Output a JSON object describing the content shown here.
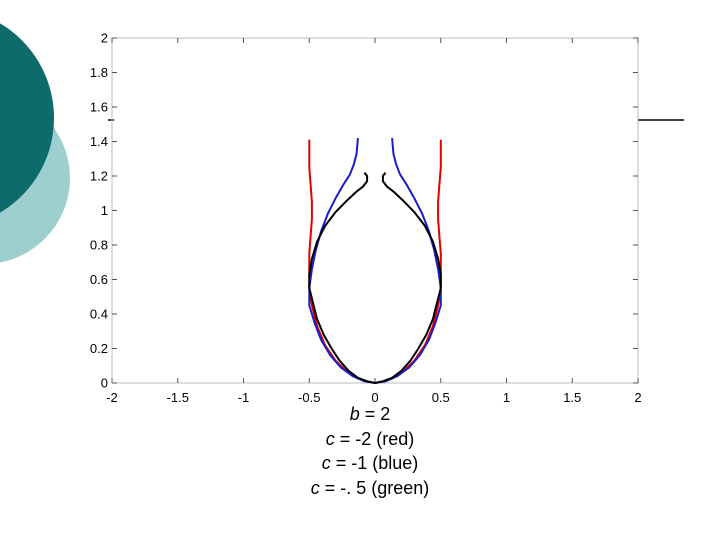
{
  "slide": {
    "caption": [
      {
        "var": "b",
        "text": " = 2"
      },
      {
        "var": "c",
        "text": " = -2 (red)"
      },
      {
        "var": "c",
        "text": " = -1 (blue)"
      },
      {
        "var": "c",
        "text": " = -. 5 (green)"
      }
    ],
    "colors": {
      "teal_dark": "#0e6b6b",
      "teal_light": "#9ecfcf",
      "title_rule": "#000000"
    }
  },
  "chart_data": {
    "type": "line",
    "xlim": [
      -2,
      2
    ],
    "ylim": [
      0,
      2
    ],
    "xticks": [
      -2,
      -1.5,
      -1,
      -0.5,
      0,
      0.5,
      1,
      1.5,
      2
    ],
    "yticks": [
      0,
      0.2,
      0.4,
      0.6,
      0.8,
      1,
      1.2,
      1.4,
      1.6,
      1.8,
      2
    ],
    "xtick_labels": [
      "-2",
      "-1.5",
      "-1",
      "-0.5",
      "0",
      "0.5",
      "1",
      "1.5",
      "2"
    ],
    "ytick_labels": [
      "0",
      "0.2",
      "0.4",
      "0.6",
      "0.8",
      "1",
      "1.2",
      "1.4",
      "1.6",
      "1.8",
      "2"
    ],
    "grid": false,
    "series": [
      {
        "color": "#e00000",
        "x": [
          0,
          0.06,
          0.14,
          0.22,
          0.3,
          0.38,
          0.44,
          0.48,
          0.5,
          0.5,
          0.5,
          0.49,
          0.48,
          0.48,
          0.49,
          0.5,
          0.5
        ],
        "y": [
          0,
          0.01,
          0.03,
          0.07,
          0.13,
          0.22,
          0.33,
          0.45,
          0.55,
          0.65,
          0.75,
          0.85,
          0.95,
          1.05,
          1.15,
          1.25,
          1.41
        ]
      },
      {
        "color": "#1c1cc8",
        "x": [
          0,
          0.08,
          0.17,
          0.26,
          0.34,
          0.41,
          0.46,
          0.5,
          0.5,
          0.48,
          0.45,
          0.41,
          0.36,
          0.3,
          0.24,
          0.19,
          0.16,
          0.14,
          0.13
        ],
        "y": [
          0,
          0.01,
          0.04,
          0.09,
          0.16,
          0.25,
          0.35,
          0.45,
          0.55,
          0.66,
          0.77,
          0.88,
          0.98,
          1.07,
          1.15,
          1.21,
          1.27,
          1.33,
          1.42
        ]
      },
      {
        "color": "#000000",
        "x": [
          0,
          0.06,
          0.13,
          0.2,
          0.27,
          0.33,
          0.39,
          0.44,
          0.47,
          0.5,
          0.5,
          0.48,
          0.44,
          0.38,
          0.3,
          0.21,
          0.14,
          0.09,
          0.06,
          0.06,
          0.08
        ],
        "y": [
          0,
          0.01,
          0.03,
          0.07,
          0.13,
          0.2,
          0.28,
          0.37,
          0.46,
          0.55,
          0.63,
          0.72,
          0.82,
          0.91,
          0.99,
          1.06,
          1.11,
          1.14,
          1.17,
          1.2,
          1.22
        ]
      }
    ]
  }
}
